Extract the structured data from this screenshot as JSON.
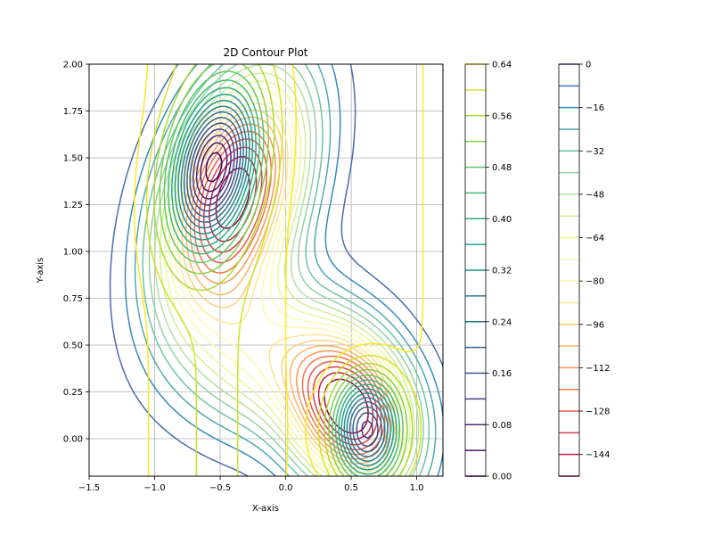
{
  "chart_data": {
    "type": "contour",
    "title": "2D Contour Plot",
    "xlabel": "X-axis",
    "ylabel": "Y-axis",
    "xlim": [
      -1.5,
      1.2
    ],
    "ylim": [
      -0.2,
      2.0
    ],
    "grid": true,
    "x_ticks": [
      -1.5,
      -1.0,
      -0.5,
      0.0,
      0.5,
      1.0
    ],
    "x_tick_labels": [
      "−1.5",
      "−1.0",
      "−0.5",
      "0.0",
      "0.5",
      "1.0"
    ],
    "y_ticks": [
      0.0,
      0.25,
      0.5,
      0.75,
      1.0,
      1.25,
      1.5,
      1.75,
      2.0
    ],
    "y_tick_labels": [
      "0.00",
      "0.25",
      "0.50",
      "0.75",
      "1.00",
      "1.25",
      "1.50",
      "1.75",
      "2.00"
    ],
    "series": [
      {
        "colormap": "viridis",
        "levels": [
          0.0,
          0.04,
          0.08,
          0.12,
          0.16,
          0.2,
          0.24,
          0.28,
          0.32,
          0.36,
          0.4,
          0.44,
          0.48,
          0.52,
          0.56,
          0.6,
          0.64
        ],
        "colorbar_ticks": [
          0.0,
          0.08,
          0.16,
          0.24,
          0.32,
          0.4,
          0.48,
          0.56,
          0.64
        ],
        "colorbar_tick_labels": [
          "0.00",
          "0.08",
          "0.16",
          "0.24",
          "0.32",
          "0.40",
          "0.48",
          "0.56",
          "0.64"
        ]
      },
      {
        "colormap": "Spectral",
        "levels": [
          -152,
          -144,
          -136,
          -128,
          -120,
          -112,
          -104,
          -96,
          -88,
          -80,
          -72,
          -64,
          -56,
          -48,
          -40,
          -32,
          -24,
          -16,
          -8,
          0
        ],
        "colorbar_ticks": [
          0,
          -16,
          -32,
          -48,
          -64,
          -80,
          -96,
          -112,
          -128,
          -144
        ],
        "colorbar_tick_labels": [
          "0",
          "−16",
          "−32",
          "−48",
          "−64",
          "−80",
          "−96",
          "−112",
          "−128",
          "−144"
        ]
      }
    ]
  }
}
